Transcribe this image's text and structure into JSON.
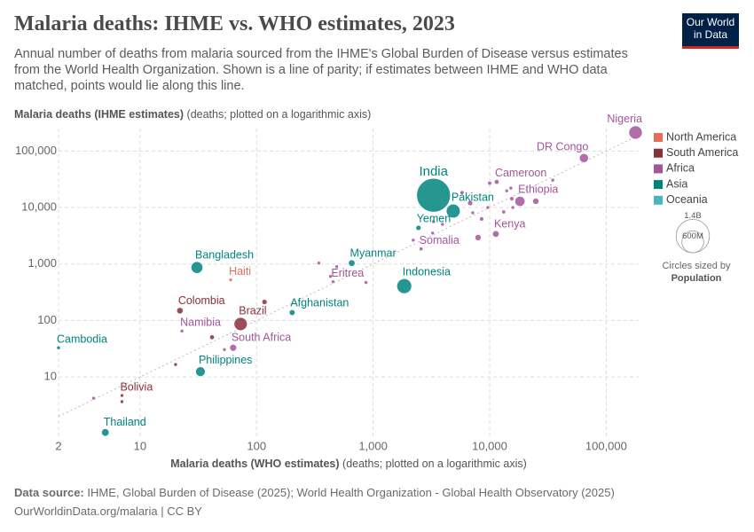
{
  "chart_data": {
    "type": "scatter",
    "title": "Malaria deaths: IHME vs. WHO estimates, 2023",
    "subtitle": "Annual number of deaths from malaria sourced from the IHME's Global Burden of Disease versus estimates from the World Health Organization. Shown is a line of parity; if estimates between IHME and WHO data matched, points would lie along this line.",
    "y_label": "Malaria deaths (IHME estimates)",
    "y_label_note": "(deaths; plotted on a logarithmic axis)",
    "x_label": "Malaria deaths (WHO estimates)",
    "x_label_note": "(deaths; plotted on a logarithmic axis)",
    "source_label": "Data source:",
    "source": "IHME, Global Burden of Disease (2025); World Health Organization - Global Health Observatory (2025)",
    "footer": "OurWorldinData.org/malaria | CC BY",
    "logo": [
      "Our World",
      "in Data"
    ],
    "log_x": true,
    "log_y": true,
    "grid": true,
    "parity_line": true,
    "legend_position": "right",
    "xlim": [
      2,
      190000
    ],
    "ylim": [
      0.8,
      250000
    ],
    "xticks": [
      2,
      10,
      100,
      {
        "value": 1000,
        "label": "1,000"
      },
      {
        "value": 10000,
        "label": "10,000"
      },
      {
        "value": 100000,
        "label": "100,000"
      }
    ],
    "yticks": [
      10,
      100,
      {
        "value": 1000,
        "label": "1,000"
      },
      {
        "value": 10000,
        "label": "10,000"
      },
      {
        "value": 100000,
        "label": "100,000"
      }
    ],
    "size_legend": {
      "title": "Circles sized by",
      "variable": "Population",
      "values": [
        {
          "value": 1400000000,
          "label": "1.4B"
        },
        {
          "value": 600000000,
          "label": "600M"
        }
      ]
    },
    "series": [
      {
        "name": "North America",
        "color": "#e56e5a",
        "x": [
          60
        ],
        "y": [
          524
        ],
        "sizes": [
          11700000
        ],
        "labels": [
          "Haiti"
        ]
      },
      {
        "name": "South America",
        "color": "#883039",
        "x": [
          22,
          73,
          7.0,
          117,
          41.5,
          20.2,
          7.0
        ],
        "y": [
          149,
          86.6,
          4.7,
          213,
          50.5,
          16.6,
          3.65
        ],
        "sizes": [
          52000000,
          216000000,
          12000000,
          34000000,
          28000000,
          6000000,
          800000
        ],
        "labels": [
          "Colombia",
          "Brazil",
          "Bolivia",
          null,
          null,
          null,
          null
        ]
      },
      {
        "name": "Africa",
        "color": "#a2559c",
        "x": [
          178600,
          64400,
          11500,
          18200,
          2580,
          11300,
          453,
          22.9,
          63,
          10000,
          15200,
          14000,
          15500,
          24900,
          34800,
          5800,
          6800,
          9650,
          7160,
          8530,
          13200,
          15800,
          3940,
          3300,
          2210,
          3240,
          7960,
          342,
          487,
          431,
          869,
          53,
          4.0
        ],
        "y": [
          213000,
          75000,
          28400,
          12860,
          1850,
          3400,
          487,
          65,
          32.8,
          27000,
          22100,
          19800,
          14300,
          12900,
          30500,
          18400,
          12000,
          10000,
          8060,
          6270,
          8350,
          10000,
          5050,
          5620,
          2640,
          3520,
          2940,
          1040,
          897,
          604,
          470,
          30.5,
          4.2
        ],
        "sizes": [
          224000000,
          102000000,
          28000000,
          126000000,
          18000000,
          55000000,
          3700000,
          2600000,
          60000000,
          20000000,
          17000000,
          14000000,
          23000000,
          50000000,
          10000000,
          20000000,
          34000000,
          9000000,
          13000000,
          22000000,
          19000000,
          14000000,
          5000000,
          8000000,
          4000000,
          2500000,
          48000000,
          1500000,
          2200000,
          5500000,
          2000000,
          2400000,
          1500000
        ],
        "labels": [
          "Nigeria",
          "DR Congo",
          "Cameroon",
          "Ethiopia",
          "Somalia",
          "Kenya",
          "Eritrea",
          "Namibia",
          "South Africa",
          null,
          null,
          null,
          null,
          null,
          null,
          null,
          null,
          null,
          null,
          null,
          null,
          null,
          null,
          null,
          null,
          null,
          null,
          null,
          null,
          null,
          null,
          null,
          null
        ]
      },
      {
        "name": "Asia",
        "color": "#00847e",
        "x": [
          3300,
          4870,
          2450,
          30.8,
          656,
          1850,
          202,
          2.0,
          33,
          5.04
        ],
        "y": [
          16500,
          8660,
          4370,
          866,
          1037,
          406,
          138,
          32.8,
          12.4,
          1.04
        ],
        "sizes": [
          1430000000,
          240000000,
          34000000,
          173000000,
          54000000,
          277000000,
          42000000,
          17000000,
          117000000,
          72000000
        ],
        "labels": [
          "India",
          "Pakistan",
          "Yemen",
          "Bangladesh",
          "Myanmar",
          "Indonesia",
          "Afghanistan",
          "Cambodia",
          "Philippines",
          "Thailand"
        ]
      },
      {
        "name": "Oceania",
        "color": "#4cb4be",
        "x": [],
        "y": [],
        "sizes": [],
        "labels": []
      }
    ]
  }
}
